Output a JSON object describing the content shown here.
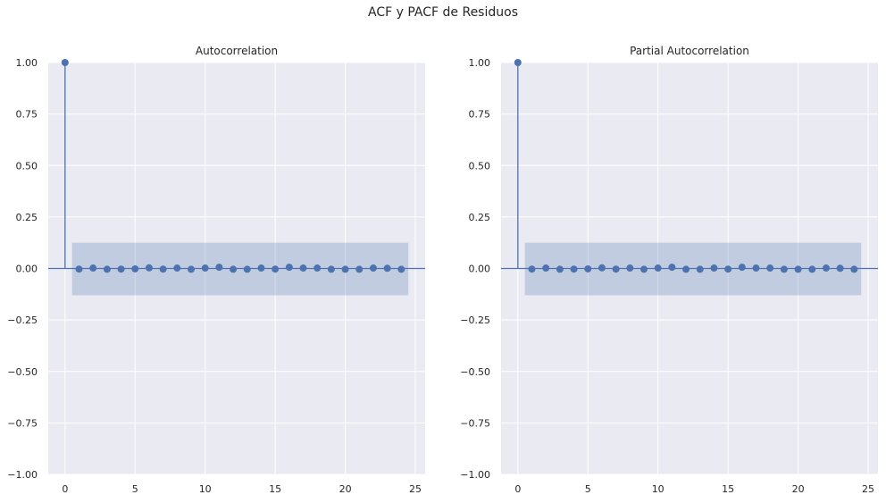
{
  "figure": {
    "title": "ACF y PACF de Residuos"
  },
  "chart_data": [
    {
      "type": "scatter",
      "style": "stem",
      "title": "Autocorrelation",
      "xlabel": "",
      "ylabel": "",
      "xlim": [
        -1.2,
        25.7
      ],
      "ylim": [
        -1.0,
        1.0
      ],
      "xticks": [
        0,
        5,
        10,
        15,
        20,
        25
      ],
      "yticks": [
        -1.0,
        -0.75,
        -0.5,
        -0.25,
        0.0,
        0.25,
        0.5,
        0.75,
        1.0
      ],
      "grid": true,
      "lags": [
        0,
        1,
        2,
        3,
        4,
        5,
        6,
        7,
        8,
        9,
        10,
        11,
        12,
        13,
        14,
        15,
        16,
        17,
        18,
        19,
        20,
        21,
        22,
        23,
        24
      ],
      "values": [
        1.0,
        -0.003,
        0.002,
        -0.004,
        -0.003,
        -0.002,
        0.003,
        -0.003,
        0.002,
        -0.004,
        0.002,
        0.006,
        -0.004,
        -0.004,
        0.002,
        -0.003,
        0.006,
        0.002,
        0.002,
        -0.004,
        -0.004,
        -0.004,
        0.002,
        0.001,
        -0.004
      ],
      "confidence_band": {
        "lower": -0.13,
        "upper": 0.125,
        "x_start": 0.5,
        "x_end": 24.5
      },
      "colors": {
        "marker": "#4c72b0",
        "band": "#4c72b0",
        "background": "#eaeaf2",
        "grid": "#ffffff"
      }
    },
    {
      "type": "scatter",
      "style": "stem",
      "title": "Partial Autocorrelation",
      "xlabel": "",
      "ylabel": "",
      "xlim": [
        -1.2,
        25.7
      ],
      "ylim": [
        -1.0,
        1.0
      ],
      "xticks": [
        0,
        5,
        10,
        15,
        20,
        25
      ],
      "yticks": [
        -1.0,
        -0.75,
        -0.5,
        -0.25,
        0.0,
        0.25,
        0.5,
        0.75,
        1.0
      ],
      "grid": true,
      "lags": [
        0,
        1,
        2,
        3,
        4,
        5,
        6,
        7,
        8,
        9,
        10,
        11,
        12,
        13,
        14,
        15,
        16,
        17,
        18,
        19,
        20,
        21,
        22,
        23,
        24
      ],
      "values": [
        1.0,
        -0.003,
        0.002,
        -0.004,
        -0.003,
        -0.002,
        0.003,
        -0.003,
        0.002,
        -0.004,
        0.002,
        0.006,
        -0.004,
        -0.004,
        0.002,
        -0.003,
        0.006,
        0.002,
        0.002,
        -0.004,
        -0.004,
        -0.004,
        0.002,
        0.001,
        -0.004
      ],
      "confidence_band": {
        "lower": -0.13,
        "upper": 0.125,
        "x_start": 0.5,
        "x_end": 24.5
      },
      "colors": {
        "marker": "#4c72b0",
        "band": "#4c72b0",
        "background": "#eaeaf2",
        "grid": "#ffffff"
      }
    }
  ]
}
